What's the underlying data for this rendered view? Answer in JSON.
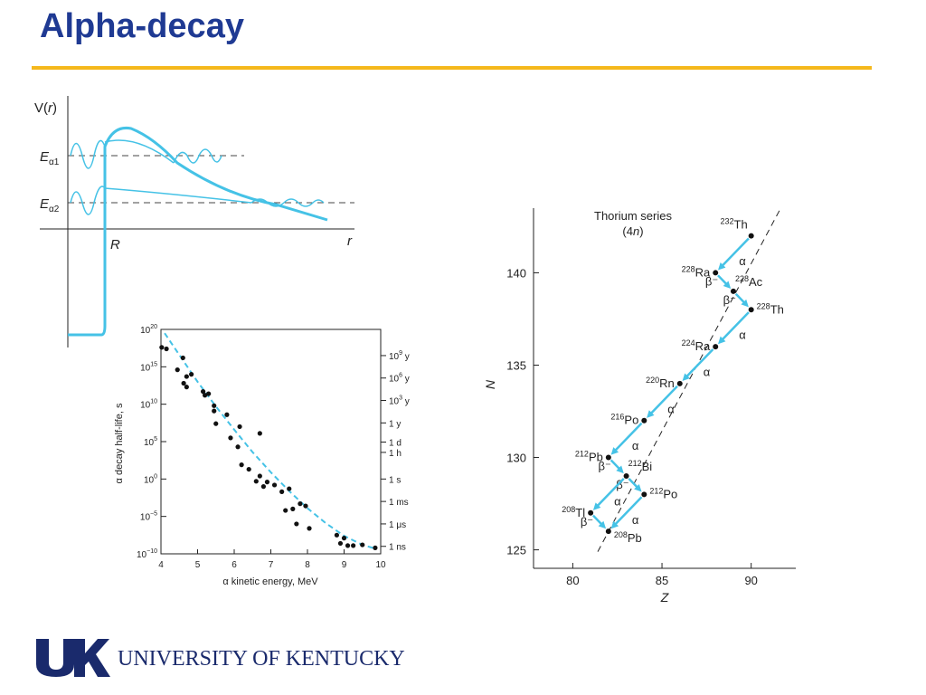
{
  "title": "Alpha-decay",
  "colors": {
    "accent": "#45c2e6",
    "title": "#1f3a93",
    "rule": "#f5b81c",
    "footer": "#1a2a6c"
  },
  "footer": {
    "university": "UNIVERSITY OF KENTUCKY",
    "logo_letters": "UK"
  },
  "chart_data": [
    {
      "type": "line",
      "ylabel_main": "V(",
      "ylabel_var": "r",
      "ylabel_close": ")",
      "xlabel": "r",
      "x_mark": "R",
      "levels": [
        {
          "E": "E",
          "sub": "α1"
        },
        {
          "E": "E",
          "sub": "α2"
        }
      ]
    },
    {
      "type": "scatter",
      "xlabel": "α kinetic energy, MeV",
      "ylabel": "α decay half-life, s",
      "xlim": [
        4,
        10
      ],
      "x_ticks": [
        "4",
        "5",
        "6",
        "7",
        "8",
        "9",
        "10"
      ],
      "y_log_range": [
        -10,
        20
      ],
      "y_ticks": [
        {
          "base": "10",
          "exp": "−10",
          "value": -10
        },
        {
          "base": "10",
          "exp": "−5",
          "value": -5
        },
        {
          "base": "10",
          "exp": "0",
          "value": 0
        },
        {
          "base": "10",
          "exp": "5",
          "value": 5
        },
        {
          "base": "10",
          "exp": "10",
          "value": 10
        },
        {
          "base": "10",
          "exp": "15",
          "value": 15
        },
        {
          "base": "10",
          "exp": "20",
          "value": 20
        }
      ],
      "right_ticks": [
        {
          "base": "10",
          "exp": "9",
          "unit": " y",
          "value": 16.5
        },
        {
          "base": "10",
          "exp": "6",
          "unit": " y",
          "value": 13.5
        },
        {
          "base": "10",
          "exp": "3",
          "unit": " y",
          "value": 10.5
        },
        {
          "base": "1 y",
          "exp": "",
          "unit": "",
          "value": 7.5
        },
        {
          "base": "1 d",
          "exp": "",
          "unit": "",
          "value": 4.94
        },
        {
          "base": "1 h",
          "exp": "",
          "unit": "",
          "value": 3.56
        },
        {
          "base": "1 s",
          "exp": "",
          "unit": "",
          "value": 0
        },
        {
          "base": "1 ms",
          "exp": "",
          "unit": "",
          "value": -3
        },
        {
          "base": "1 μs",
          "exp": "",
          "unit": "",
          "value": -6
        },
        {
          "base": "1 ns",
          "exp": "",
          "unit": "",
          "value": -9
        }
      ],
      "points": [
        {
          "x": 4.02,
          "y": 17.6
        },
        {
          "x": 4.15,
          "y": 17.4
        },
        {
          "x": 4.45,
          "y": 14.6
        },
        {
          "x": 4.6,
          "y": 16.2
        },
        {
          "x": 4.7,
          "y": 12.3
        },
        {
          "x": 4.7,
          "y": 13.7
        },
        {
          "x": 4.62,
          "y": 12.8
        },
        {
          "x": 4.83,
          "y": 14.0
        },
        {
          "x": 5.15,
          "y": 11.7
        },
        {
          "x": 5.3,
          "y": 11.4
        },
        {
          "x": 5.2,
          "y": 11.2
        },
        {
          "x": 5.45,
          "y": 9.8
        },
        {
          "x": 5.45,
          "y": 9.1
        },
        {
          "x": 5.5,
          "y": 7.4
        },
        {
          "x": 5.8,
          "y": 8.6
        },
        {
          "x": 5.9,
          "y": 5.5
        },
        {
          "x": 6.1,
          "y": 4.3
        },
        {
          "x": 6.15,
          "y": 7.0
        },
        {
          "x": 6.2,
          "y": 1.9
        },
        {
          "x": 6.4,
          "y": 1.3
        },
        {
          "x": 6.6,
          "y": -0.3
        },
        {
          "x": 6.7,
          "y": 0.4
        },
        {
          "x": 6.7,
          "y": 6.1
        },
        {
          "x": 6.8,
          "y": -1.0
        },
        {
          "x": 6.9,
          "y": -0.4
        },
        {
          "x": 7.1,
          "y": -0.8
        },
        {
          "x": 7.3,
          "y": -1.7
        },
        {
          "x": 7.5,
          "y": -1.3
        },
        {
          "x": 7.4,
          "y": -4.2
        },
        {
          "x": 7.6,
          "y": -4.0
        },
        {
          "x": 7.8,
          "y": -3.3
        },
        {
          "x": 7.7,
          "y": -6.0
        },
        {
          "x": 7.95,
          "y": -3.6
        },
        {
          "x": 8.05,
          "y": -6.6
        },
        {
          "x": 8.8,
          "y": -7.5
        },
        {
          "x": 8.9,
          "y": -8.6
        },
        {
          "x": 9.0,
          "y": -7.9
        },
        {
          "x": 9.1,
          "y": -8.9
        },
        {
          "x": 9.25,
          "y": -8.9
        },
        {
          "x": 9.5,
          "y": -8.8
        },
        {
          "x": 9.85,
          "y": -9.2
        }
      ],
      "fit_curve": [
        {
          "x": 4.1,
          "y": 19.5
        },
        {
          "x": 4.5,
          "y": 16.6
        },
        {
          "x": 5.0,
          "y": 13.0
        },
        {
          "x": 5.5,
          "y": 9.7
        },
        {
          "x": 6.0,
          "y": 6.6
        },
        {
          "x": 6.5,
          "y": 3.6
        },
        {
          "x": 7.0,
          "y": 0.9
        },
        {
          "x": 7.5,
          "y": -1.6
        },
        {
          "x": 8.0,
          "y": -3.9
        },
        {
          "x": 8.5,
          "y": -5.9
        },
        {
          "x": 9.0,
          "y": -7.6
        },
        {
          "x": 9.5,
          "y": -8.8
        },
        {
          "x": 9.85,
          "y": -9.3
        }
      ]
    },
    {
      "type": "scatter",
      "title_line1": "Thorium series",
      "title_line2_open": "(4",
      "title_line2_var": "n",
      "title_line2_close": ")",
      "xlabel": "Z",
      "ylabel": "N",
      "xlim": [
        77.8,
        92.5
      ],
      "ylim": [
        124,
        143.5
      ],
      "x_ticks": [
        80,
        85,
        90
      ],
      "y_ticks": [
        125,
        130,
        135,
        140
      ],
      "nuclides": [
        {
          "name": "Th",
          "mass": "232",
          "Z": 90,
          "N": 142,
          "label_pos": "above-left"
        },
        {
          "name": "Ra",
          "mass": "228",
          "Z": 88,
          "N": 140,
          "label_pos": "left"
        },
        {
          "name": "Ac",
          "mass": "228",
          "Z": 89,
          "N": 139,
          "label_pos": "right-up"
        },
        {
          "name": "Th",
          "mass": "228",
          "Z": 90,
          "N": 138,
          "label_pos": "right"
        },
        {
          "name": "Ra",
          "mass": "224",
          "Z": 88,
          "N": 136,
          "label_pos": "left"
        },
        {
          "name": "Rn",
          "mass": "220",
          "Z": 86,
          "N": 134,
          "label_pos": "left"
        },
        {
          "name": "Po",
          "mass": "216",
          "Z": 84,
          "N": 132,
          "label_pos": "left"
        },
        {
          "name": "Pb",
          "mass": "212",
          "Z": 82,
          "N": 130,
          "label_pos": "left"
        },
        {
          "name": "Bi",
          "mass": "212",
          "Z": 83,
          "N": 129,
          "label_pos": "right-up"
        },
        {
          "name": "Po",
          "mass": "212",
          "Z": 84,
          "N": 128,
          "label_pos": "right"
        },
        {
          "name": "Tl",
          "mass": "208",
          "Z": 81,
          "N": 127,
          "label_pos": "left"
        },
        {
          "name": "Pb",
          "mass": "208",
          "Z": 82,
          "N": 126,
          "label_pos": "right-down"
        }
      ],
      "decays": [
        {
          "from": 0,
          "to": 1,
          "label": "α"
        },
        {
          "from": 1,
          "to": 2,
          "label": "β⁻"
        },
        {
          "from": 2,
          "to": 3,
          "label": "β⁻"
        },
        {
          "from": 3,
          "to": 4,
          "label": "α"
        },
        {
          "from": 4,
          "to": 5,
          "label": "α"
        },
        {
          "from": 5,
          "to": 6,
          "label": "α"
        },
        {
          "from": 6,
          "to": 7,
          "label": "α"
        },
        {
          "from": 7,
          "to": 8,
          "label": "β⁻"
        },
        {
          "from": 8,
          "to": 9,
          "label": "β⁻"
        },
        {
          "from": 8,
          "to": 10,
          "label": "α"
        },
        {
          "from": 9,
          "to": 11,
          "label": "α"
        },
        {
          "from": 10,
          "to": 11,
          "label": "β⁻"
        }
      ],
      "stability_line": [
        {
          "Z": 81.4,
          "N": 124.9
        },
        {
          "Z": 91.6,
          "N": 143.4
        }
      ]
    }
  ]
}
